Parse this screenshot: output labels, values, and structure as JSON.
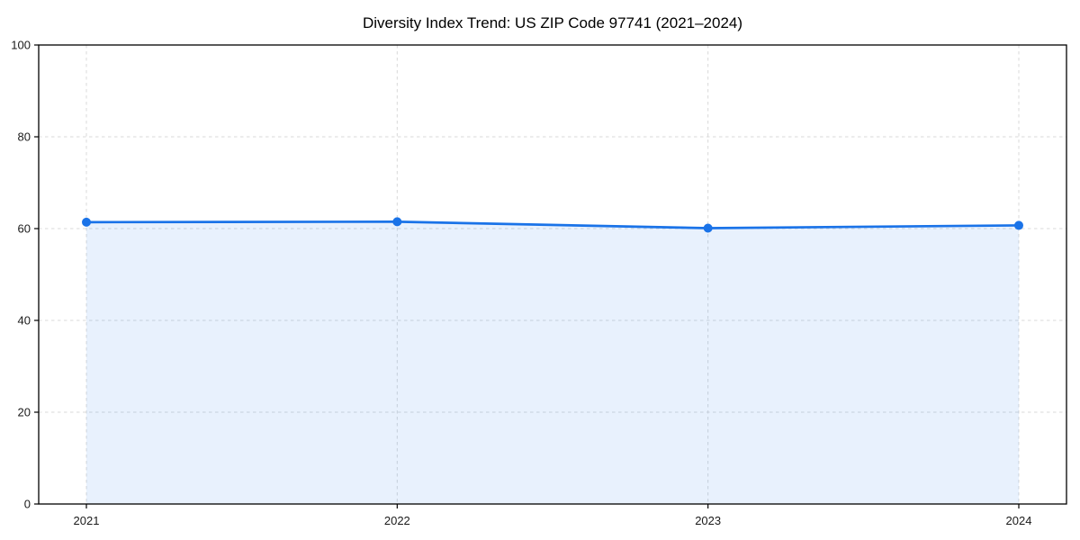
{
  "chart_data": {
    "type": "area",
    "title": "Diversity Index Trend: US ZIP Code 97741 (2021–2024)",
    "categories": [
      "2021",
      "2022",
      "2023",
      "2024"
    ],
    "series": [
      {
        "name": "Diversity Index",
        "values": [
          61.4,
          61.5,
          60.1,
          60.7
        ]
      }
    ],
    "xlabel": "",
    "ylabel": "",
    "ylim": [
      0,
      100
    ],
    "yticks": [
      0,
      20,
      40,
      60,
      80,
      100
    ],
    "grid": "dashed both axes",
    "legend_position": "none",
    "line_color": "#1a73e8",
    "marker_color": "#1a73e8",
    "fill_color": "#1a73e8",
    "fill_opacity": 0.1,
    "grid_color": "#d9d9d9",
    "spine_color": "#000000",
    "background_color": "#ffffff"
  }
}
